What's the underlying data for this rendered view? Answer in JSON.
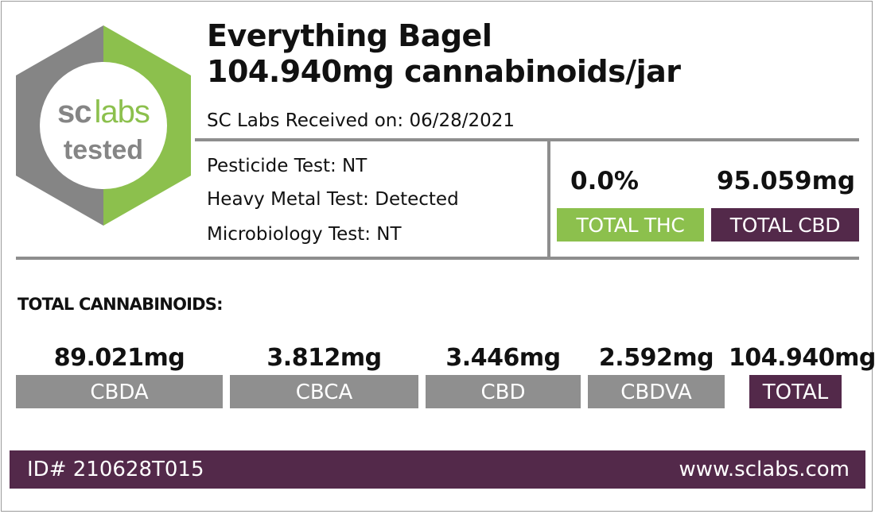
{
  "logo": {
    "line1_a": "sc",
    "line1_b": "labs",
    "line2": "tested",
    "green": "#8cc04d",
    "gray": "#858585"
  },
  "product": {
    "name": "Everything Bagel",
    "potency": "104.940mg cannabinoids/jar"
  },
  "received": "SC Labs Received  on: 06/28/2021",
  "tests": {
    "pesticide": "Pesticide Test: NT",
    "heavy_metal": "Heavy Metal Test: Detected",
    "microbiology": "Microbiology Test: NT"
  },
  "summary": {
    "thc_value": "0.0%",
    "thc_label": "TOTAL THC",
    "cbd_value": "95.059mg",
    "cbd_label": "TOTAL CBD"
  },
  "cannabinoids_heading": "TOTAL CANNABINOIDS:",
  "cannabinoids": [
    {
      "value": "89.021mg",
      "label": "CBDA"
    },
    {
      "value": "3.812mg",
      "label": "CBCA"
    },
    {
      "value": "3.446mg",
      "label": "CBD"
    },
    {
      "value": "2.592mg",
      "label": "CBDVA"
    },
    {
      "value": "104.940mg",
      "label": "TOTAL"
    }
  ],
  "footer": {
    "id": "ID# 210628T015",
    "website": "www.sclabs.com"
  },
  "colors": {
    "green": "#8cc04d",
    "purple": "#53294a",
    "gray": "#8f8f8f"
  }
}
